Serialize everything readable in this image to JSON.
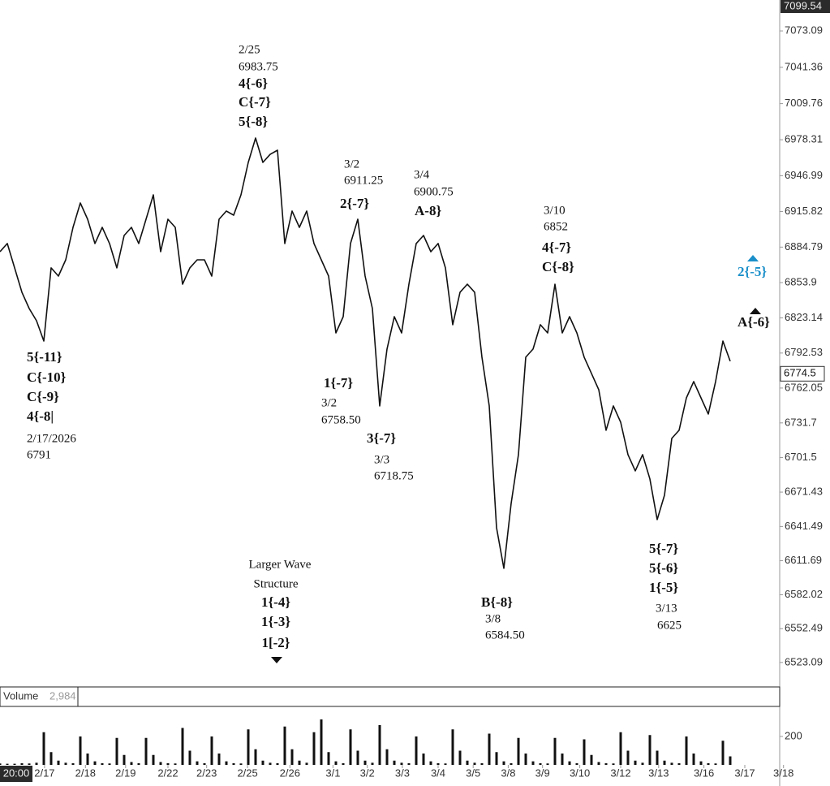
{
  "chart_data": [
    {
      "type": "line",
      "color": "#111111",
      "values": [
        6880.8,
        6887.9,
        6866.7,
        6845.5,
        6831.3,
        6820.7,
        6803.0,
        6866.7,
        6859.6,
        6873.7,
        6902.0,
        6923.2,
        6909.1,
        6887.9,
        6902.0,
        6887.9,
        6866.7,
        6894.9,
        6902.0,
        6887.9,
        6909.1,
        6930.3,
        6880.8,
        6909.1,
        6902.0,
        6852.5,
        6866.7,
        6873.7,
        6873.7,
        6859.6,
        6909.1,
        6916.2,
        6912.6,
        6930.3,
        6958.6,
        6979.8,
        6958.6,
        6965.6,
        6969.2,
        6887.9,
        6916.2,
        6902.0,
        6916.2,
        6887.9,
        6873.7,
        6859.6,
        6810.1,
        6824.2,
        6887.9,
        6909.1,
        6859.6,
        6831.3,
        6746.5,
        6796.0,
        6824.2,
        6810.1,
        6852.5,
        6887.9,
        6894.9,
        6880.8,
        6887.9,
        6866.7,
        6817.2,
        6845.5,
        6852.5,
        6845.5,
        6788.9,
        6746.5,
        6640.4,
        6605.1,
        6661.6,
        6704.1,
        6788.9,
        6796.0,
        6817.2,
        6810.1,
        6852.5,
        6810.1,
        6824.2,
        6810.1,
        6788.9,
        6774.8,
        6760.6,
        6725.3,
        6746.5,
        6732.3,
        6704.1,
        6689.9,
        6704.1,
        6682.9,
        6647.5,
        6668.7,
        6718.2,
        6725.3,
        6753.5,
        6767.7,
        6753.5,
        6739.4,
        6767.7,
        6803.0,
        6785.4
      ],
      "ylim": [
        6506,
        7100
      ],
      "yticks": [
        7073.09,
        7041.36,
        7009.76,
        6978.31,
        6946.99,
        6915.82,
        6884.79,
        6853.9,
        6823.14,
        6792.53,
        6762.05,
        6731.7,
        6701.5,
        6671.43,
        6641.49,
        6611.69,
        6582.02,
        6552.49,
        6523.09
      ],
      "xlim": [
        0,
        108
      ],
      "xticks": [
        {
          "value": 6.1,
          "label": "2/17"
        },
        {
          "value": 11.7,
          "label": "2/18"
        },
        {
          "value": 17.2,
          "label": "2/19"
        },
        {
          "value": 23,
          "label": "2/22"
        },
        {
          "value": 28.3,
          "label": "2/23"
        },
        {
          "value": 33.9,
          "label": "2/25"
        },
        {
          "value": 39.7,
          "label": "2/26"
        },
        {
          "value": 45.6,
          "label": "3/1"
        },
        {
          "value": 50.3,
          "label": "3/2"
        },
        {
          "value": 55.1,
          "label": "3/3"
        },
        {
          "value": 60,
          "label": "3/4"
        },
        {
          "value": 64.8,
          "label": "3/5"
        },
        {
          "value": 69.6,
          "label": "3/8"
        },
        {
          "value": 74.3,
          "label": "3/9"
        },
        {
          "value": 79.4,
          "label": "3/10"
        },
        {
          "value": 85,
          "label": "3/12"
        },
        {
          "value": 90.2,
          "label": "3/13"
        },
        {
          "value": 96.4,
          "label": "3/16"
        },
        {
          "value": 102,
          "label": "3/17"
        },
        {
          "value": 107.3,
          "label": "3/18"
        }
      ],
      "high_marker": 7099.54,
      "last": 6774.5,
      "time_label": "20:00",
      "annotations": [
        [
          "2/25",
          "6983.75",
          "4{-6}",
          "C{-7}",
          "5{-8}"
        ],
        [
          "5{-11}",
          "C{-10}",
          "C{-9}",
          "4{-8|",
          "2/17/2026",
          "6791"
        ],
        [
          "3/2",
          "6911.25",
          "2{-7}"
        ],
        [
          "3/4",
          "6900.75",
          "A-8}"
        ],
        [
          "1{-7}",
          "3/2",
          "6758.50"
        ],
        [
          "3{-7}",
          "3/3",
          "6718.75"
        ],
        [
          "3/10",
          "6852",
          "4{-7}",
          "C{-8}"
        ],
        [
          "B{-8}",
          "3/8",
          "6584.50"
        ],
        [
          "5{-7}",
          "5{-6}",
          "1{-5}",
          "3/13",
          "6625"
        ],
        [
          "Larger Wave",
          "Structure",
          "1{-4}",
          "1{-3}",
          "1[-2}"
        ],
        [
          "2{-5}"
        ],
        [
          "A{-6}"
        ]
      ]
    },
    {
      "type": "bar",
      "title": "Volume",
      "color": "#111111",
      "current": {
        "value": 2984,
        "label": "2,984"
      },
      "values": [
        10,
        8,
        8,
        12,
        10,
        15,
        230,
        90,
        30,
        15,
        12,
        200,
        80,
        25,
        12,
        10,
        190,
        70,
        20,
        12,
        190,
        70,
        20,
        12,
        10,
        260,
        100,
        25,
        12,
        200,
        80,
        25,
        12,
        10,
        250,
        110,
        30,
        15,
        12,
        270,
        110,
        30,
        15,
        230,
        320,
        90,
        25,
        12,
        250,
        100,
        30,
        15,
        280,
        110,
        30,
        15,
        12,
        200,
        80,
        25,
        12,
        10,
        250,
        100,
        30,
        15,
        12,
        220,
        90,
        25,
        12,
        190,
        80,
        25,
        12,
        10,
        190,
        80,
        25,
        12,
        180,
        70,
        20,
        12,
        10,
        230,
        100,
        30,
        15,
        210,
        100,
        30,
        15,
        12,
        200,
        80,
        25,
        12,
        10,
        170,
        60
      ],
      "ylim": [
        0,
        400
      ],
      "yticks": [
        200
      ]
    }
  ]
}
